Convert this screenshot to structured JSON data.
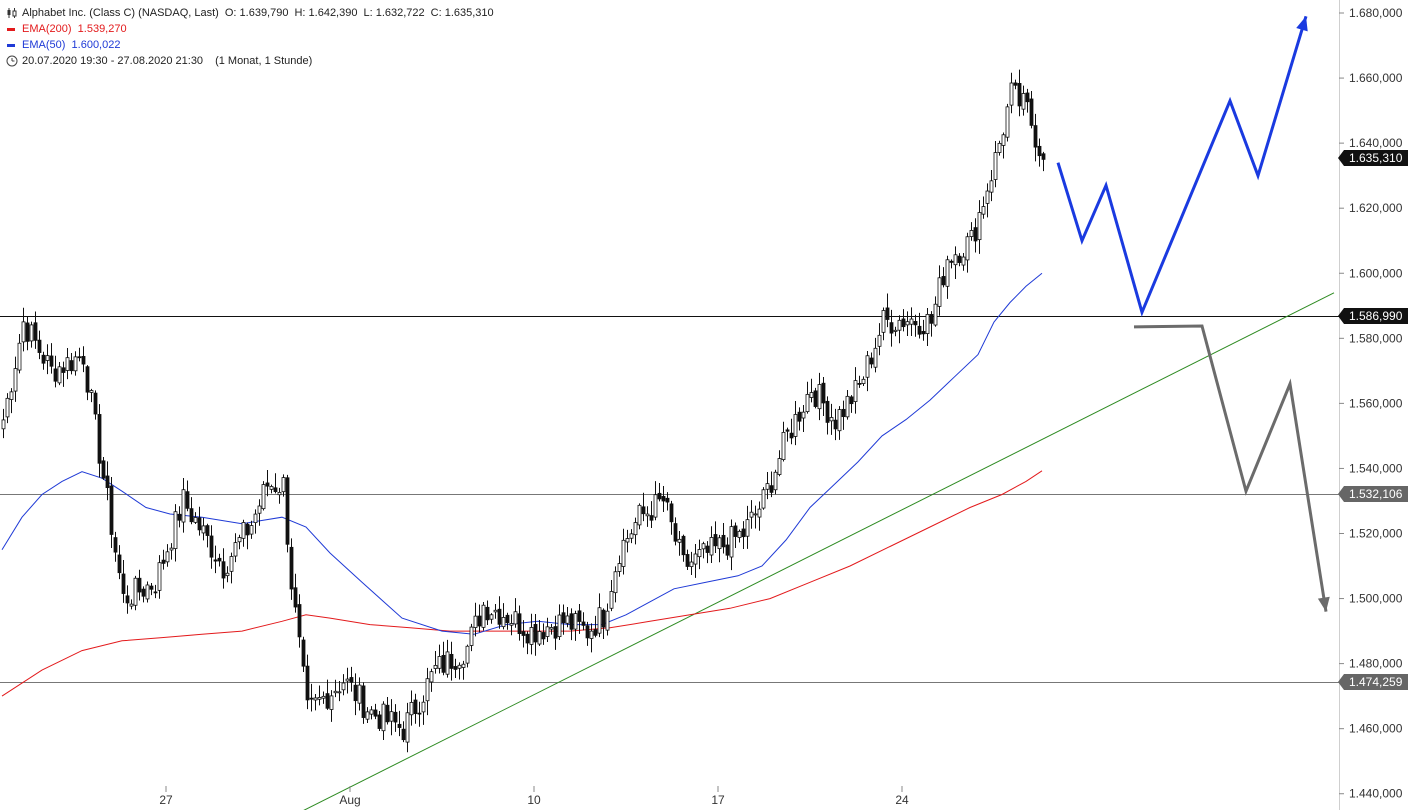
{
  "header": {
    "symbol_icon": "candlestick-icon",
    "instrument": "Alphabet Inc. (Class C) (NASDAQ, Last)",
    "ohlc": {
      "O_label": "O:",
      "O": "1.639,790",
      "H_label": "H:",
      "H": "1.642,390",
      "L_label": "L:",
      "L": "1.632,722",
      "C_label": "C:",
      "C": "1.635,310"
    },
    "indicators": [
      {
        "name": "EMA(200)",
        "value": "1.539,270",
        "color": "#e31a1c"
      },
      {
        "name": "EMA(50)",
        "value": "1.600,022",
        "color": "#1f3ad6"
      }
    ],
    "period_icon": "clock-icon",
    "period": "20.07.2020 19:30 - 27.08.2020 21:30",
    "interval": "(1 Monat, 1 Stunde)"
  },
  "chart_data": {
    "type": "candlestick",
    "x_ticks": [
      "27",
      "Aug",
      "10",
      "17",
      "24"
    ],
    "ylim": [
      1435,
      1684
    ],
    "y_ticks": [
      "1.440,000",
      "1.460,000",
      "1.480,000",
      "1.500,000",
      "1.520,000",
      "1.540,000",
      "1.560,000",
      "1.580,000",
      "1.600,000",
      "1.620,000",
      "1.640,000",
      "1.660,000",
      "1.680,000"
    ],
    "y_tick_values": [
      1440,
      1460,
      1480,
      1500,
      1520,
      1540,
      1560,
      1580,
      1600,
      1620,
      1640,
      1660,
      1680
    ],
    "anchors": [
      {
        "bar": 0,
        "close": 1555
      },
      {
        "bar": 5,
        "close": 1585
      },
      {
        "bar": 12,
        "close": 1570
      },
      {
        "bar": 20,
        "close": 1575
      },
      {
        "bar": 30,
        "close": 1500
      },
      {
        "bar": 38,
        "close": 1505
      },
      {
        "bar": 45,
        "close": 1530
      },
      {
        "bar": 55,
        "close": 1510
      },
      {
        "bar": 62,
        "close": 1523
      },
      {
        "bar": 66,
        "close": 1535
      },
      {
        "bar": 70,
        "close": 1535
      },
      {
        "bar": 72,
        "close": 1505
      },
      {
        "bar": 76,
        "close": 1465
      },
      {
        "bar": 85,
        "close": 1475
      },
      {
        "bar": 92,
        "close": 1465
      },
      {
        "bar": 100,
        "close": 1460
      },
      {
        "bar": 108,
        "close": 1478
      },
      {
        "bar": 116,
        "close": 1485
      },
      {
        "bar": 120,
        "close": 1498
      },
      {
        "bar": 126,
        "close": 1495
      },
      {
        "bar": 132,
        "close": 1490
      },
      {
        "bar": 140,
        "close": 1493
      },
      {
        "bar": 146,
        "close": 1490
      },
      {
        "bar": 150,
        "close": 1495
      },
      {
        "bar": 154,
        "close": 1515
      },
      {
        "bar": 159,
        "close": 1525
      },
      {
        "bar": 165,
        "close": 1530
      },
      {
        "bar": 170,
        "close": 1510
      },
      {
        "bar": 178,
        "close": 1515
      },
      {
        "bar": 185,
        "close": 1520
      },
      {
        "bar": 190,
        "close": 1530
      },
      {
        "bar": 196,
        "close": 1550
      },
      {
        "bar": 202,
        "close": 1565
      },
      {
        "bar": 208,
        "close": 1555
      },
      {
        "bar": 214,
        "close": 1565
      },
      {
        "bar": 220,
        "close": 1585
      },
      {
        "bar": 226,
        "close": 1586
      },
      {
        "bar": 232,
        "close": 1585
      },
      {
        "bar": 236,
        "close": 1605
      },
      {
        "bar": 242,
        "close": 1610
      },
      {
        "bar": 248,
        "close": 1635
      },
      {
        "bar": 252,
        "close": 1655
      },
      {
        "bar": 256,
        "close": 1650
      },
      {
        "bar": 260,
        "close": 1635
      }
    ],
    "series": [
      {
        "name": "EMA(200)",
        "color": "#e31a1c",
        "points": [
          [
            0,
            1470
          ],
          [
            10,
            1478
          ],
          [
            20,
            1484
          ],
          [
            30,
            1487
          ],
          [
            40,
            1488
          ],
          [
            50,
            1489
          ],
          [
            60,
            1490
          ],
          [
            70,
            1493
          ],
          [
            76,
            1495
          ],
          [
            82,
            1494
          ],
          [
            92,
            1492
          ],
          [
            102,
            1491
          ],
          [
            112,
            1490
          ],
          [
            122,
            1490
          ],
          [
            132,
            1490
          ],
          [
            142,
            1490
          ],
          [
            152,
            1491
          ],
          [
            162,
            1493
          ],
          [
            172,
            1495
          ],
          [
            182,
            1497
          ],
          [
            192,
            1500
          ],
          [
            202,
            1505
          ],
          [
            212,
            1510
          ],
          [
            222,
            1516
          ],
          [
            232,
            1522
          ],
          [
            242,
            1528
          ],
          [
            250,
            1532
          ],
          [
            256,
            1536
          ],
          [
            260,
            1539.27
          ]
        ]
      },
      {
        "name": "EMA(50)",
        "color": "#1f3ad6",
        "points": [
          [
            0,
            1515
          ],
          [
            5,
            1525
          ],
          [
            10,
            1532
          ],
          [
            15,
            1536
          ],
          [
            20,
            1539
          ],
          [
            25,
            1537
          ],
          [
            30,
            1533
          ],
          [
            36,
            1528
          ],
          [
            42,
            1526
          ],
          [
            50,
            1525
          ],
          [
            60,
            1523
          ],
          [
            70,
            1525
          ],
          [
            76,
            1522
          ],
          [
            82,
            1514
          ],
          [
            90,
            1505
          ],
          [
            100,
            1494
          ],
          [
            110,
            1490
          ],
          [
            118,
            1489
          ],
          [
            126,
            1492
          ],
          [
            134,
            1493
          ],
          [
            142,
            1492
          ],
          [
            150,
            1492
          ],
          [
            156,
            1495
          ],
          [
            162,
            1499
          ],
          [
            168,
            1503
          ],
          [
            176,
            1505
          ],
          [
            184,
            1507
          ],
          [
            190,
            1510
          ],
          [
            196,
            1518
          ],
          [
            202,
            1528
          ],
          [
            208,
            1535
          ],
          [
            214,
            1542
          ],
          [
            220,
            1550
          ],
          [
            226,
            1555
          ],
          [
            232,
            1561
          ],
          [
            238,
            1568
          ],
          [
            244,
            1575
          ],
          [
            248,
            1585
          ],
          [
            252,
            1591
          ],
          [
            256,
            1596
          ],
          [
            260,
            1600.022
          ]
        ]
      }
    ],
    "hlines": [
      {
        "value": 1586.99,
        "label": "1.586,990",
        "color": "#111111",
        "box": "#111111"
      },
      {
        "value": 1532.106,
        "label": "1.532,106",
        "color": "#777777",
        "box": "#666666"
      },
      {
        "value": 1474.259,
        "label": "1.474,259",
        "color": "#777777",
        "box": "#666666"
      }
    ],
    "last_price": {
      "value": 1635.31,
      "label": "1.635,310",
      "box": "#111111"
    },
    "trendline": {
      "color": "#2e8b22",
      "from": [
        74,
        1434
      ],
      "to": [
        333,
        1594
      ]
    },
    "projections": [
      {
        "name": "bullish-scenario",
        "color": "#1a3ae0",
        "points": [
          [
            264,
            1634
          ],
          [
            270,
            1610
          ],
          [
            276,
            1627
          ],
          [
            285,
            1588
          ],
          [
            307,
            1653
          ],
          [
            314,
            1630
          ],
          [
            326,
            1679
          ]
        ]
      },
      {
        "name": "bearish-scenario",
        "color": "#6b6b6b",
        "points": [
          [
            283,
            1583.5
          ],
          [
            300,
            1583.8
          ],
          [
            311,
            1533
          ],
          [
            322,
            1566
          ],
          [
            331,
            1496
          ]
        ]
      }
    ],
    "x_tick_positions": [
      [
        40,
        "27"
      ],
      [
        86,
        "Aug"
      ],
      [
        132,
        "10"
      ],
      [
        178,
        "17"
      ],
      [
        224,
        "24"
      ]
    ]
  }
}
